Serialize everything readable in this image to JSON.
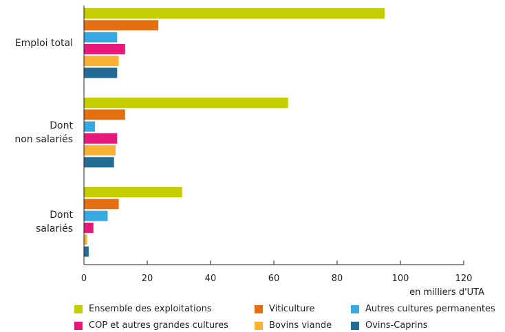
{
  "chart_data": {
    "type": "bar",
    "orientation": "horizontal",
    "categories": [
      "Emploi total",
      "Dont\nnon salariés",
      "Dont\nsalariés"
    ],
    "series": [
      {
        "name": "Ensemble des exploitations",
        "color": "#c3cd00",
        "values": [
          95,
          64.5,
          31
        ]
      },
      {
        "name": "Viticulture",
        "color": "#e36f10",
        "values": [
          23.5,
          13,
          11
        ]
      },
      {
        "name": "Autres cultures permanentes",
        "color": "#37a9e1",
        "values": [
          10.5,
          3.5,
          7.5
        ]
      },
      {
        "name": "COP et autres grandes cultures",
        "color": "#e6197b",
        "values": [
          13,
          10.5,
          3
        ]
      },
      {
        "name": "Bovins viande",
        "color": "#f8b133",
        "values": [
          11,
          10,
          1
        ]
      },
      {
        "name": "Ovins-Caprins",
        "color": "#236b94",
        "values": [
          10.5,
          9.5,
          1.5
        ]
      }
    ],
    "xlim": [
      0,
      120
    ],
    "xticks": [
      0,
      20,
      40,
      60,
      80,
      100,
      120
    ],
    "xlabel": "en milliers d'UTA",
    "grid": false,
    "legend_position": "bottom"
  }
}
